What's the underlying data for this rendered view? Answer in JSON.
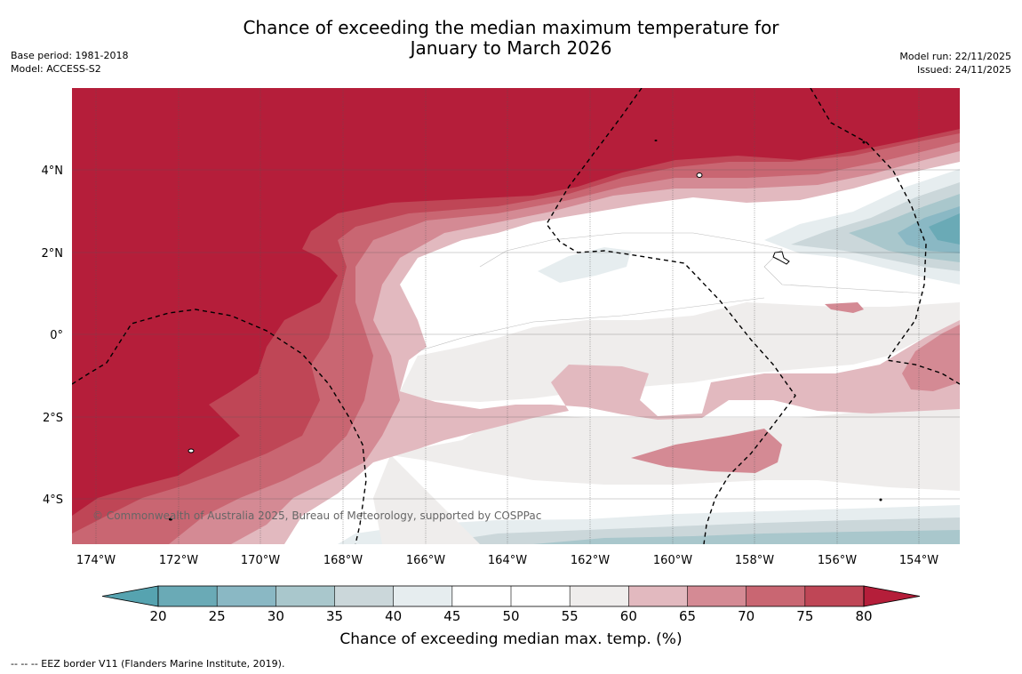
{
  "header": {
    "title_line1": "Chance of exceeding the median maximum temperature for",
    "title_line2": "January to March 2026",
    "base_period": "Base period: 1981-2018",
    "model": "Model: ACCESS-S2",
    "model_run": "Model run: 22/11/2025",
    "issued": "Issued: 24/11/2025"
  },
  "map": {
    "lon_labels": [
      "174°W",
      "172°W",
      "170°W",
      "168°W",
      "166°W",
      "164°W",
      "162°W",
      "160°W",
      "158°W",
      "156°W",
      "154°W"
    ],
    "lat_labels": [
      "4°N",
      "2°N",
      "0°",
      "2°S",
      "4°S"
    ],
    "copyright": "© Commonwealth of Australia 2025, Bureau of Meteorology, supported by COSPPac"
  },
  "colorbar": {
    "ticks": [
      "20",
      "25",
      "30",
      "35",
      "40",
      "45",
      "50",
      "55",
      "60",
      "65",
      "70",
      "75",
      "80"
    ],
    "colors": [
      "#6aaab6",
      "#8ab8c4",
      "#a9c7cc",
      "#cbd7da",
      "#e6edef",
      "#ffffff",
      "#ffffff",
      "#efedec",
      "#e2b9bf",
      "#d48a94",
      "#c96672",
      "#bf4656"
    ],
    "low_extend_color": "#56a3b0",
    "high_extend_color": "#b51e3a",
    "title": "Chance of exceeding median max. temp. (%)"
  },
  "footer": {
    "legend_text": "--  --  -- EEZ border V11 (Flanders Marine Institute, 2019)."
  }
}
